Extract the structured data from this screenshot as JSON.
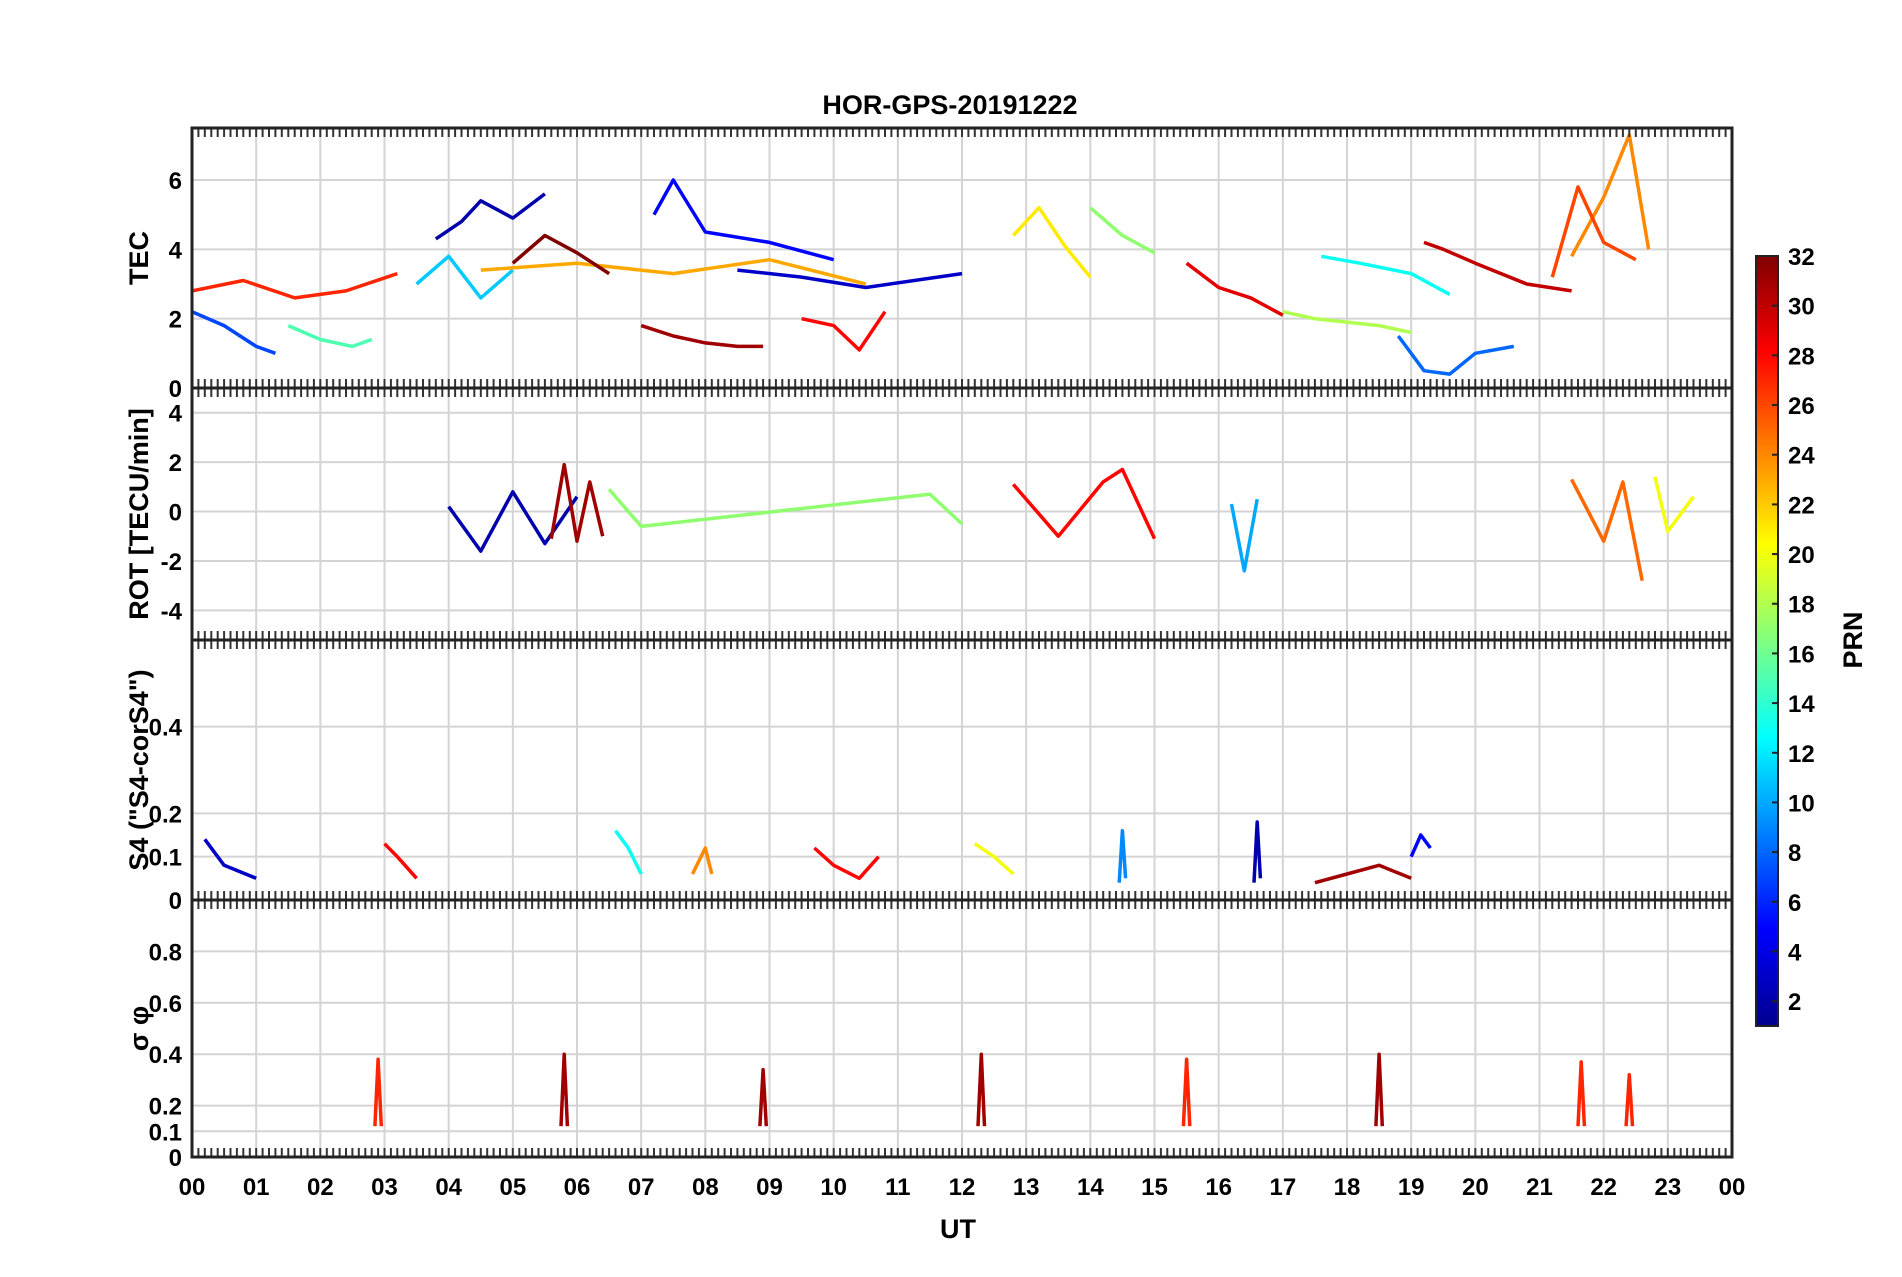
{
  "chart_data": {
    "type": "line",
    "title": "HOR-GPS-20191222",
    "xlabel": "UT",
    "x_tick_labels": [
      "00",
      "01",
      "02",
      "03",
      "04",
      "05",
      "06",
      "07",
      "08",
      "09",
      "10",
      "11",
      "12",
      "13",
      "14",
      "15",
      "16",
      "17",
      "18",
      "19",
      "20",
      "21",
      "22",
      "23",
      "00"
    ],
    "xlim": [
      0,
      24
    ],
    "grid": true,
    "colorbar": {
      "label": "PRN",
      "range": [
        1,
        32
      ],
      "ticks": [
        "2",
        "4",
        "6",
        "8",
        "10",
        "12",
        "14",
        "16",
        "18",
        "20",
        "22",
        "24",
        "26",
        "28",
        "30",
        "32"
      ],
      "colormap": "jet",
      "colors": [
        "#00008f",
        "#0000ff",
        "#0080ff",
        "#00ffff",
        "#80ff80",
        "#ffff00",
        "#ff8000",
        "#ff0000",
        "#800000"
      ]
    },
    "panels": [
      {
        "ylabel": "TEC",
        "ylim": [
          0,
          7.5
        ],
        "yticks": [
          0,
          2,
          4,
          6
        ],
        "ytick_labels": [
          "0",
          "2",
          "4",
          "6"
        ],
        "series": [
          {
            "prn": 2,
            "x": [
              3.8,
              4.2,
              4.5,
              5.0,
              5.5
            ],
            "y": [
              4.3,
              4.8,
              5.4,
              4.9,
              5.6
            ]
          },
          {
            "prn": 3,
            "x": [
              8.5,
              9.5,
              10.5,
              12.0
            ],
            "y": [
              3.4,
              3.2,
              2.9,
              3.3
            ]
          },
          {
            "prn": 5,
            "x": [
              7.2,
              7.5,
              8.0,
              9.0,
              10.0
            ],
            "y": [
              5.0,
              6.0,
              4.5,
              4.2,
              3.7
            ]
          },
          {
            "prn": 7,
            "x": [
              0.0,
              0.5,
              1.0,
              1.3
            ],
            "y": [
              2.2,
              1.8,
              1.2,
              1.0
            ]
          },
          {
            "prn": 8,
            "x": [
              18.8,
              19.2,
              19.6,
              20.0,
              20.6
            ],
            "y": [
              1.5,
              0.5,
              0.4,
              1.0,
              1.2
            ]
          },
          {
            "prn": 11,
            "x": [
              3.5,
              4.0,
              4.5,
              5.0
            ],
            "y": [
              3.0,
              3.8,
              2.6,
              3.4
            ]
          },
          {
            "prn": 13,
            "x": [
              17.6,
              18.2,
              19.0,
              19.6
            ],
            "y": [
              3.8,
              3.6,
              3.3,
              2.7
            ]
          },
          {
            "prn": 15,
            "x": [
              1.5,
              2.0,
              2.5,
              2.8
            ],
            "y": [
              1.8,
              1.4,
              1.2,
              1.4
            ]
          },
          {
            "prn": 17,
            "x": [
              14.0,
              14.5,
              15.0
            ],
            "y": [
              5.2,
              4.4,
              3.9
            ]
          },
          {
            "prn": 18,
            "x": [
              17.0,
              17.5,
              18.5,
              19.0
            ],
            "y": [
              2.2,
              2.0,
              1.8,
              1.6
            ]
          },
          {
            "prn": 21,
            "x": [
              12.8,
              13.2,
              13.6,
              14.0
            ],
            "y": [
              4.4,
              5.2,
              4.1,
              3.2
            ]
          },
          {
            "prn": 23,
            "x": [
              4.5,
              6.0,
              7.5,
              9.0,
              10.5
            ],
            "y": [
              3.4,
              3.6,
              3.3,
              3.7,
              3.0
            ]
          },
          {
            "prn": 24,
            "x": [
              21.5,
              22.0,
              22.4,
              22.7
            ],
            "y": [
              3.8,
              5.5,
              7.3,
              4.0
            ]
          },
          {
            "prn": 26,
            "x": [
              21.2,
              21.6,
              22.0,
              22.5
            ],
            "y": [
              3.2,
              5.8,
              4.2,
              3.7
            ]
          },
          {
            "prn": 27,
            "x": [
              0.0,
              0.8,
              1.6,
              2.4,
              3.2
            ],
            "y": [
              2.8,
              3.1,
              2.6,
              2.8,
              3.3
            ]
          },
          {
            "prn": 28,
            "x": [
              9.5,
              10.0,
              10.4,
              10.8
            ],
            "y": [
              2.0,
              1.8,
              1.1,
              2.2
            ]
          },
          {
            "prn": 29,
            "x": [
              15.5,
              16.0,
              16.5,
              17.0
            ],
            "y": [
              3.6,
              2.9,
              2.6,
              2.1
            ]
          },
          {
            "prn": 30,
            "x": [
              19.2,
              19.5,
              20.0,
              20.8,
              21.5
            ],
            "y": [
              4.2,
              4.0,
              3.6,
              3.0,
              2.8
            ]
          },
          {
            "prn": 31,
            "x": [
              7.0,
              7.5,
              8.0,
              8.5,
              8.9
            ],
            "y": [
              1.8,
              1.5,
              1.3,
              1.2,
              1.2
            ]
          },
          {
            "prn": 32,
            "x": [
              5.0,
              5.5,
              6.0,
              6.5
            ],
            "y": [
              3.6,
              4.4,
              3.9,
              3.3
            ]
          }
        ]
      },
      {
        "ylabel": "ROT [TECU/min]",
        "ylim": [
          -5.2,
          5
        ],
        "yticks": [
          -4,
          -2,
          0,
          2,
          4
        ],
        "ytick_labels": [
          "-4",
          "-2",
          "0",
          "2",
          "4"
        ],
        "series": [
          {
            "prn": 2,
            "x": [
              4.0,
              4.5,
              5.0,
              5.5,
              6.0
            ],
            "y": [
              0.2,
              -1.6,
              0.8,
              -1.3,
              0.6
            ]
          },
          {
            "prn": 10,
            "x": [
              16.2,
              16.4,
              16.6
            ],
            "y": [
              0.3,
              -2.4,
              0.5
            ]
          },
          {
            "prn": 17,
            "x": [
              6.5,
              7.0,
              11.5,
              12.0
            ],
            "y": [
              0.9,
              -0.6,
              0.7,
              -0.5
            ]
          },
          {
            "prn": 20,
            "x": [
              22.8,
              23.0,
              23.4
            ],
            "y": [
              1.4,
              -0.8,
              0.6
            ]
          },
          {
            "prn": 25,
            "x": [
              21.5,
              22.0,
              22.3,
              22.6
            ],
            "y": [
              1.3,
              -1.2,
              1.2,
              -2.8
            ]
          },
          {
            "prn": 28,
            "x": [
              12.8,
              13.5,
              14.2,
              14.5,
              15.0
            ],
            "y": [
              1.1,
              -1.0,
              1.2,
              1.7,
              -1.1
            ]
          },
          {
            "prn": 31,
            "x": [
              5.6,
              5.8,
              6.0,
              6.2,
              6.4
            ],
            "y": [
              -1.1,
              1.9,
              -1.2,
              1.2,
              -1.0
            ]
          }
        ]
      },
      {
        "ylabel": "S4 (\"S4-corS4\")",
        "ylim": [
          0,
          0.6
        ],
        "yticks": [
          0,
          0.1,
          0.2,
          0.4
        ],
        "ytick_labels": [
          "0",
          "0.1",
          "0.2",
          "0.4"
        ],
        "series": [
          {
            "prn": 3,
            "x": [
              0.2,
              0.5,
              1.0
            ],
            "y": [
              0.14,
              0.08,
              0.05
            ]
          },
          {
            "prn": 2,
            "x": [
              16.55,
              16.6,
              16.65
            ],
            "y": [
              0.04,
              0.18,
              0.05
            ]
          },
          {
            "prn": 5,
            "x": [
              19.0,
              19.15,
              19.3
            ],
            "y": [
              0.1,
              0.15,
              0.12
            ]
          },
          {
            "prn": 9,
            "x": [
              14.45,
              14.5,
              14.55
            ],
            "y": [
              0.04,
              0.16,
              0.05
            ]
          },
          {
            "prn": 13,
            "x": [
              6.6,
              6.8,
              7.0
            ],
            "y": [
              0.16,
              0.12,
              0.06
            ]
          },
          {
            "prn": 20,
            "x": [
              12.2,
              12.5,
              12.8
            ],
            "y": [
              0.13,
              0.1,
              0.06
            ]
          },
          {
            "prn": 24,
            "x": [
              7.8,
              8.0,
              8.1
            ],
            "y": [
              0.06,
              0.12,
              0.06
            ]
          },
          {
            "prn": 28,
            "x": [
              3.0,
              3.2,
              3.5
            ],
            "y": [
              0.13,
              0.1,
              0.05
            ]
          },
          {
            "prn": 28,
            "x": [
              9.7,
              10.0,
              10.4,
              10.7
            ],
            "y": [
              0.12,
              0.08,
              0.05,
              0.1
            ]
          },
          {
            "prn": 31,
            "x": [
              17.5,
              18.0,
              18.5,
              19.0
            ],
            "y": [
              0.04,
              0.06,
              0.08,
              0.05
            ]
          }
        ]
      },
      {
        "ylabel": "σ φ",
        "ylim": [
          0,
          1
        ],
        "yticks": [
          0,
          0.1,
          0.2,
          0.4,
          0.6,
          0.8
        ],
        "ytick_labels": [
          "0",
          "0.1",
          "0.2",
          "0.4",
          "0.6",
          "0.8"
        ],
        "series": [
          {
            "prn": 27,
            "x": [
              2.85,
              2.9,
              2.95
            ],
            "y": [
              0.12,
              0.38,
              0.12
            ]
          },
          {
            "prn": 31,
            "x": [
              5.75,
              5.8,
              5.85
            ],
            "y": [
              0.12,
              0.4,
              0.12
            ]
          },
          {
            "prn": 31,
            "x": [
              8.85,
              8.9,
              8.95
            ],
            "y": [
              0.12,
              0.34,
              0.12
            ]
          },
          {
            "prn": 31,
            "x": [
              12.25,
              12.3,
              12.35
            ],
            "y": [
              0.12,
              0.4,
              0.12
            ]
          },
          {
            "prn": 27,
            "x": [
              15.45,
              15.5,
              15.55
            ],
            "y": [
              0.12,
              0.38,
              0.12
            ]
          },
          {
            "prn": 31,
            "x": [
              18.45,
              18.5,
              18.55
            ],
            "y": [
              0.12,
              0.4,
              0.12
            ]
          },
          {
            "prn": 27,
            "x": [
              21.6,
              21.65,
              21.7
            ],
            "y": [
              0.12,
              0.37,
              0.12
            ]
          },
          {
            "prn": 27,
            "x": [
              22.35,
              22.4,
              22.45
            ],
            "y": [
              0.12,
              0.32,
              0.12
            ]
          }
        ]
      }
    ]
  }
}
